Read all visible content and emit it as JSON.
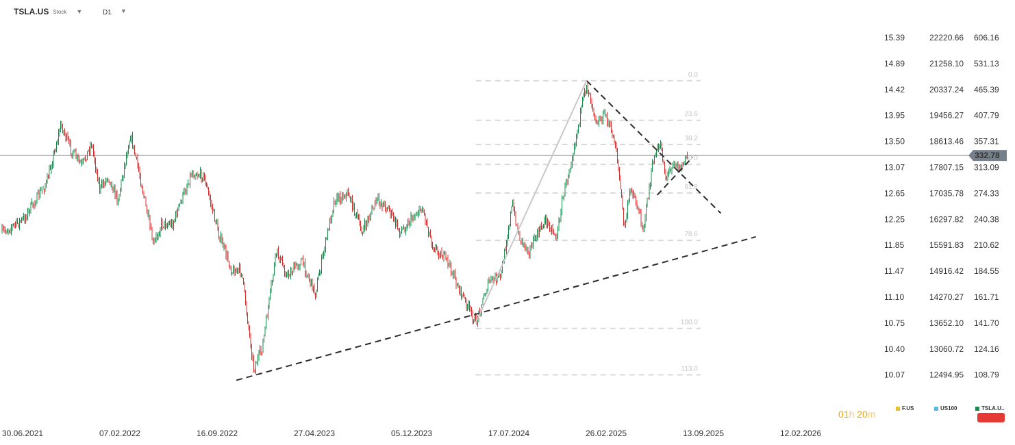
{
  "header": {
    "symbol": "TSLA.US",
    "symbol_type": "Stock",
    "timeframe": "D1",
    "dropdown_glyph": "▼"
  },
  "colors": {
    "up_candle": "#1a8a4e",
    "down_candle": "#d32f2f",
    "fib_line": "#d9d9d9",
    "trendline": "#2b2b2b",
    "price_line": "#888888",
    "price_tag": "#75808a",
    "timer": "#f0a500"
  },
  "chart_data": {
    "type": "candlestick",
    "symbol": "TSLA.US",
    "timeframe": "D1",
    "x_tick_labels": [
      "30.06.2021",
      "07.02.2022",
      "16.09.2022",
      "27.04.2023",
      "05.12.2023",
      "17.07.2024",
      "26.02.2025",
      "13.09.2025",
      "12.02.2026"
    ],
    "y_axes": [
      {
        "name": "F.US",
        "ticks": [
          "15.39",
          "14.89",
          "14.42",
          "13.95",
          "13.50",
          "13.07",
          "12.65",
          "12.25",
          "11.85",
          "11.47",
          "11.10",
          "10.75",
          "10.40",
          "10.07"
        ]
      },
      {
        "name": "US100",
        "ticks": [
          "22220.66",
          "21258.10",
          "20337.24",
          "19456.27",
          "18613.46",
          "17807.15",
          "17035.78",
          "16297.82",
          "15591.83",
          "14916.42",
          "14270.27",
          "13652.10",
          "13060.72",
          "12494.95"
        ]
      },
      {
        "name": "TSLA.US",
        "ticks": [
          "606.16",
          "531.13",
          "465.39",
          "407.79",
          "357.31",
          "313.09",
          "274.33",
          "240.38",
          "210.62",
          "184.55",
          "161.71",
          "141.70",
          "124.16",
          "108.79"
        ],
        "scale": "log",
        "range": [
          108.79,
          606.16
        ]
      }
    ],
    "current_price": "332.78",
    "fibonacci_levels": [
      {
        "label": "0.0",
        "price": 487
      },
      {
        "label": "23.6",
        "price": 398
      },
      {
        "label": "38.2",
        "price": 352
      },
      {
        "label": "50.0",
        "price": 318
      },
      {
        "label": "61.8",
        "price": 275
      },
      {
        "label": "78.6",
        "price": 216
      },
      {
        "label": "100.0",
        "price": 138
      },
      {
        "label": "113.0",
        "price": 109
      }
    ],
    "price_path": [
      [
        "2021-06-30",
        225
      ],
      [
        "2021-08-15",
        240
      ],
      [
        "2021-10-05",
        290
      ],
      [
        "2021-11-05",
        390
      ],
      [
        "2021-11-25",
        345
      ],
      [
        "2021-12-20",
        315
      ],
      [
        "2022-01-10",
        355
      ],
      [
        "2022-01-28",
        280
      ],
      [
        "2022-02-15",
        300
      ],
      [
        "2022-03-08",
        265
      ],
      [
        "2022-04-04",
        370
      ],
      [
        "2022-04-25",
        300
      ],
      [
        "2022-05-24",
        210
      ],
      [
        "2022-06-10",
        235
      ],
      [
        "2022-07-05",
        235
      ],
      [
        "2022-08-15",
        305
      ],
      [
        "2022-09-10",
        300
      ],
      [
        "2022-10-15",
        220
      ],
      [
        "2022-11-10",
        185
      ],
      [
        "2022-12-01",
        185
      ],
      [
        "2022-12-28",
        112
      ],
      [
        "2023-01-15",
        125
      ],
      [
        "2023-02-15",
        205
      ],
      [
        "2023-03-10",
        180
      ],
      [
        "2023-04-10",
        195
      ],
      [
        "2023-05-10",
        165
      ],
      [
        "2023-06-20",
        265
      ],
      [
        "2023-07-20",
        275
      ],
      [
        "2023-08-20",
        225
      ],
      [
        "2023-09-20",
        265
      ],
      [
        "2023-10-15",
        255
      ],
      [
        "2023-11-10",
        225
      ],
      [
        "2023-12-10",
        245
      ],
      [
        "2023-12-28",
        255
      ],
      [
        "2024-01-20",
        210
      ],
      [
        "2024-02-20",
        195
      ],
      [
        "2024-03-15",
        170
      ],
      [
        "2024-04-22",
        142
      ],
      [
        "2024-05-20",
        175
      ],
      [
        "2024-06-15",
        180
      ],
      [
        "2024-07-10",
        260
      ],
      [
        "2024-07-25",
        220
      ],
      [
        "2024-08-15",
        205
      ],
      [
        "2024-09-20",
        240
      ],
      [
        "2024-10-15",
        220
      ],
      [
        "2024-10-25",
        260
      ],
      [
        "2024-11-20",
        345
      ],
      [
        "2024-12-18",
        480
      ],
      [
        "2025-01-10",
        395
      ],
      [
        "2025-01-28",
        410
      ],
      [
        "2025-02-20",
        350
      ],
      [
        "2025-03-10",
        230
      ],
      [
        "2025-03-25",
        285
      ],
      [
        "2025-04-20",
        230
      ],
      [
        "2025-05-12",
        325
      ],
      [
        "2025-05-28",
        355
      ],
      [
        "2025-06-08",
        295
      ],
      [
        "2025-06-25",
        325
      ],
      [
        "2025-07-08",
        310
      ],
      [
        "2025-07-25",
        333
      ]
    ],
    "trendlines": [
      {
        "name": "lower-support",
        "from": [
          "2022-11-20",
          106
        ],
        "to": [
          "2025-12-20",
          220
        ],
        "style": "dashed"
      },
      {
        "name": "upper-resistance",
        "from": [
          "2024-12-18",
          487
        ],
        "to": [
          "2025-10-05",
          248
        ],
        "style": "dashed"
      },
      {
        "name": "triangle-lower",
        "from": [
          "2025-05-20",
          272
        ],
        "to": [
          "2025-08-05",
          330
        ],
        "style": "dashed"
      },
      {
        "name": "fib-swing",
        "from": [
          "2024-04-22",
          142
        ],
        "to": [
          "2024-12-18",
          487
        ],
        "style": "solid"
      }
    ]
  },
  "timer": {
    "hours": "01",
    "h_unit": "h",
    "minutes": "20",
    "m_unit": "m"
  },
  "legend": [
    {
      "label": "F.US",
      "color": "#e8c22a"
    },
    {
      "label": "US100",
      "color": "#5bb7e3"
    },
    {
      "label": "TSLA.U..",
      "color": "#1a8a4e"
    }
  ]
}
